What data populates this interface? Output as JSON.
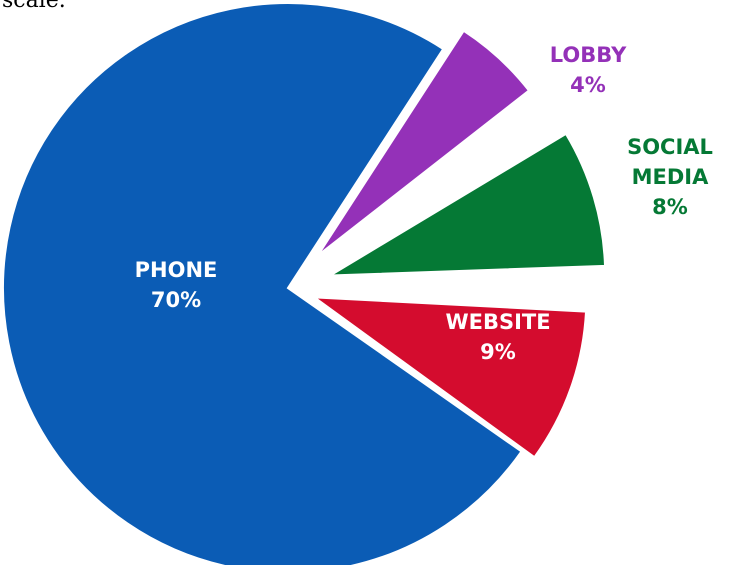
{
  "top_text": "scale.",
  "chart_data": {
    "type": "pie",
    "title": "",
    "slices": [
      {
        "name": "PHONE",
        "percent_label": "70%",
        "value": 70,
        "color": "#0b5cb5",
        "label_color": "#ffffff"
      },
      {
        "name": "WEBSITE",
        "percent_label": "9%",
        "value": 9,
        "color": "#d40c2e",
        "label_color": "#ffffff"
      },
      {
        "name": "SOCIAL MEDIA",
        "percent_label": "8%",
        "value": 8,
        "color": "#057935",
        "label_color": "#057935"
      },
      {
        "name": "LOBBY",
        "percent_label": "4%",
        "value": 4,
        "color": "#9431b8",
        "label_color": "#9431b8"
      }
    ],
    "label_lines": {
      "PHONE": [
        "PHONE",
        "70%"
      ],
      "WEBSITE": [
        "WEBSITE",
        "9%"
      ],
      "SOCIAL MEDIA": [
        "SOCIAL",
        "MEDIA",
        "8%"
      ],
      "LOBBY": [
        "LOBBY",
        "4%"
      ]
    }
  }
}
